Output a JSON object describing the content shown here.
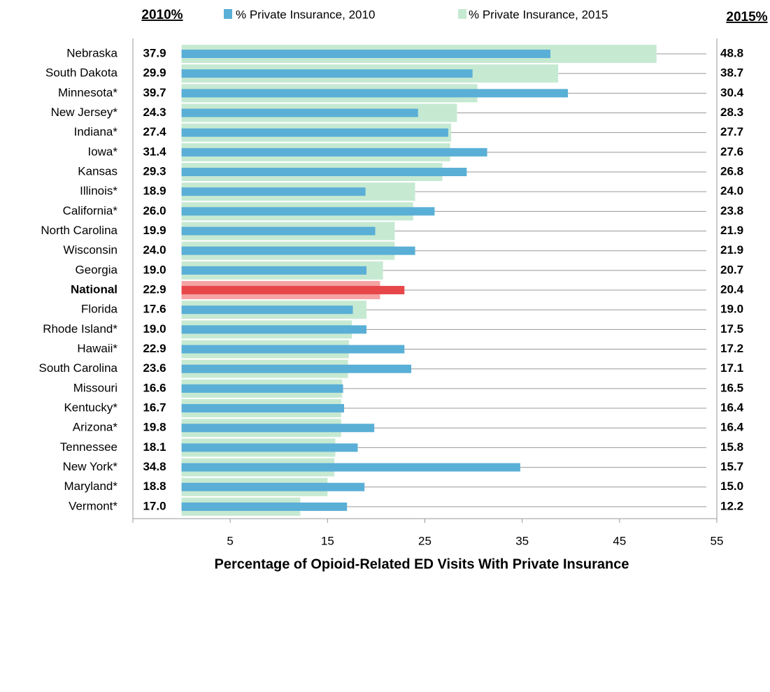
{
  "chart_data": {
    "type": "paired-bar",
    "x_label": "Percentage of Opioid-Related ED Visits With Private Insurance",
    "left_header": "2010%",
    "right_header": "2015%",
    "categories": [
      "Nebraska",
      "South Dakota",
      "Minnesota*",
      "New Jersey*",
      "Indiana*",
      "Iowa*",
      "Kansas",
      "Illinois*",
      "California*",
      "North Carolina",
      "Wisconsin",
      "Georgia",
      "National",
      "Florida",
      "Rhode Island*",
      "Hawaii*",
      "South Carolina",
      "Missouri",
      "Kentucky*",
      "Arizona*",
      "Tennessee",
      "New York*",
      "Maryland*",
      "Vermont*"
    ],
    "series": [
      {
        "name": "% Private Insurance, 2010",
        "color": "#5aafd6",
        "highlight_color": "#e8474a",
        "values": [
          37.9,
          29.9,
          39.7,
          24.3,
          27.4,
          31.4,
          29.3,
          18.9,
          26.0,
          19.9,
          24.0,
          19.0,
          22.9,
          17.6,
          19.0,
          22.9,
          23.6,
          16.6,
          16.7,
          19.8,
          18.1,
          34.8,
          18.8,
          17.0
        ],
        "value_labels": [
          "37.9",
          "29.9",
          "39.7",
          "24.3",
          "27.4",
          "31.4",
          "29.3",
          "18.9",
          "26.0",
          "19.9",
          "24.0",
          "19.0",
          "22.9",
          "17.6",
          "19.0",
          "22.9",
          "23.6",
          "16.6",
          "16.7",
          "19.8",
          "18.1",
          "34.8",
          "18.8",
          "17.0"
        ]
      },
      {
        "name": "% Private Insurance, 2015",
        "color": "#c6e9d2",
        "highlight_color": "#f5a3a3",
        "values": [
          48.8,
          38.7,
          30.4,
          28.3,
          27.7,
          27.6,
          26.8,
          24.0,
          23.8,
          21.9,
          21.9,
          20.7,
          20.4,
          19.0,
          17.5,
          17.2,
          17.1,
          16.5,
          16.4,
          16.4,
          15.8,
          15.7,
          15.0,
          12.2
        ],
        "value_labels": [
          "48.8",
          "38.7",
          "30.4",
          "28.3",
          "27.7",
          "27.6",
          "26.8",
          "24.0",
          "23.8",
          "21.9",
          "21.9",
          "20.7",
          "20.4",
          "19.0",
          "17.5",
          "17.2",
          "17.1",
          "16.5",
          "16.4",
          "16.4",
          "15.8",
          "15.7",
          "15.0",
          "12.2"
        ]
      }
    ],
    "highlight_category": "National",
    "highlight_label_color": "#ff0000",
    "xlim": [
      -5,
      55
    ],
    "xticks": [
      5,
      15,
      25,
      35,
      45,
      55
    ],
    "connector_lines": true
  }
}
